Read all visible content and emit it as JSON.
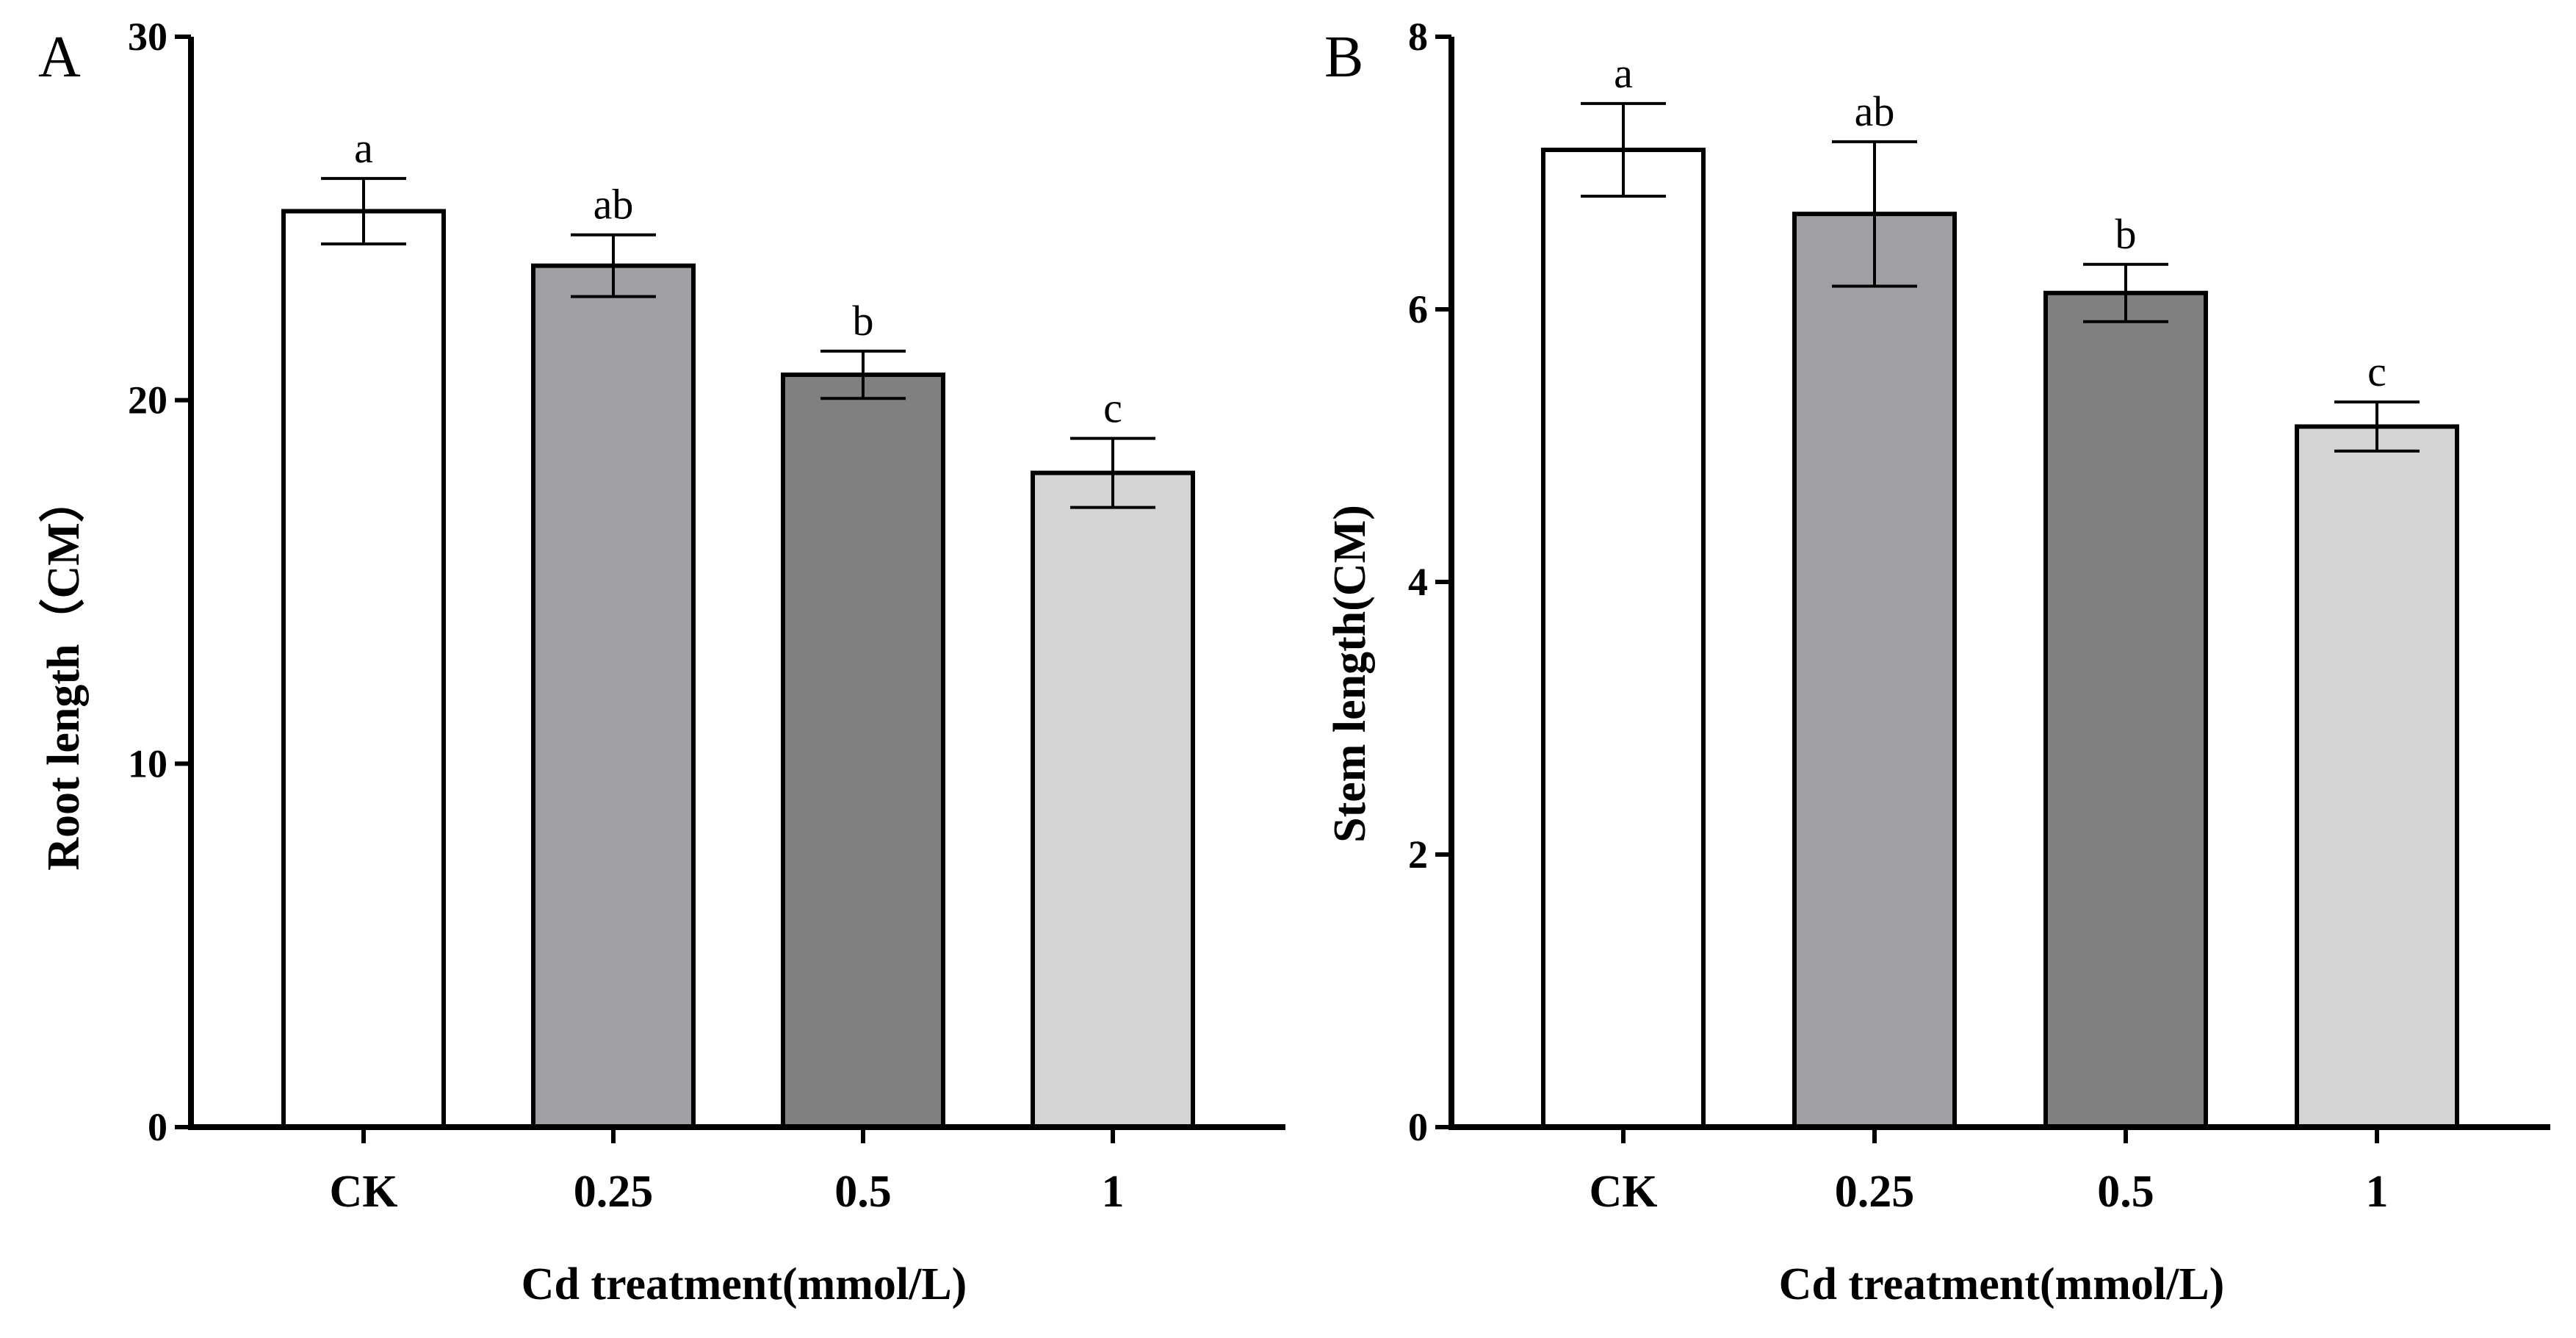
{
  "chart_data": [
    {
      "type": "bar",
      "panel": "A",
      "categories": [
        "CK",
        "0.25",
        "0.5",
        "1"
      ],
      "values": [
        25.2,
        23.7,
        20.7,
        18.0
      ],
      "errors": [
        0.9,
        0.85,
        0.65,
        0.95
      ],
      "significance": [
        "a",
        "ab",
        "b",
        "c"
      ],
      "colors": [
        "#ffffff",
        "#a0a0a4",
        "#808080",
        "#d4d4d4"
      ],
      "ylim": [
        0,
        30
      ],
      "yticks": [
        0,
        10,
        20,
        30
      ],
      "ylabel": "Root length（CM）",
      "xlabel": "Cd treatment(mmol/L)",
      "title": ""
    },
    {
      "type": "bar",
      "panel": "B",
      "categories": [
        "CK",
        "0.25",
        "0.5",
        "1"
      ],
      "values": [
        7.17,
        6.7,
        6.12,
        5.14
      ],
      "errors": [
        0.34,
        0.53,
        0.21,
        0.18
      ],
      "significance": [
        "a",
        "ab",
        "b",
        "c"
      ],
      "colors": [
        "#ffffff",
        "#a0a0a4",
        "#808080",
        "#d4d4d4"
      ],
      "ylim": [
        0,
        8
      ],
      "yticks": [
        0,
        2,
        4,
        6,
        8
      ],
      "ylabel": "Stem length(CM)",
      "xlabel": "Cd treatment(mmol/L)",
      "title": ""
    }
  ]
}
